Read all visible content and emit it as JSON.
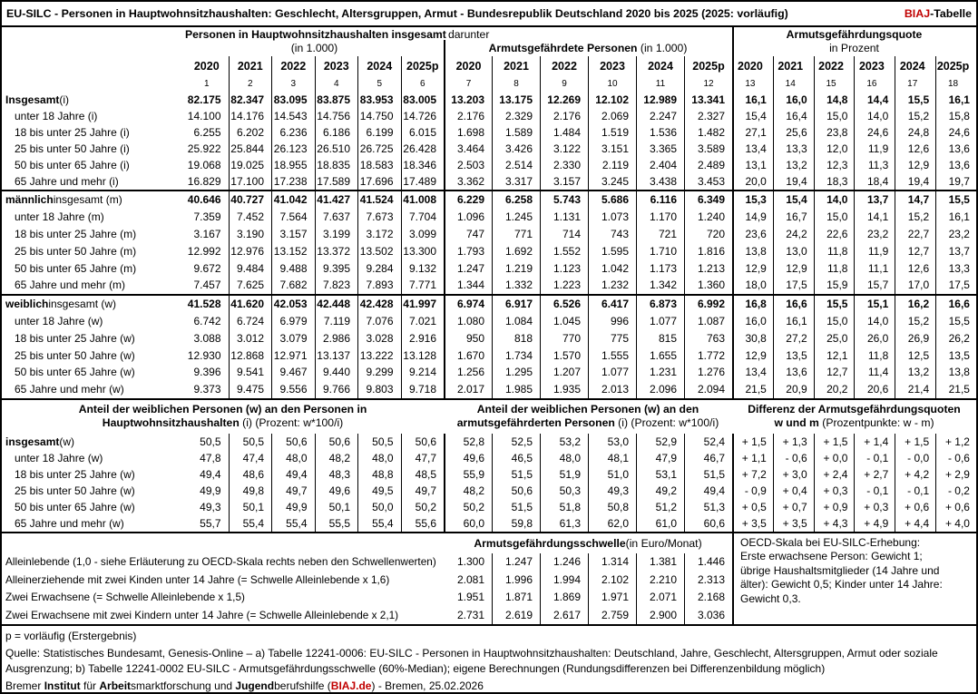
{
  "colors": {
    "accent": "#C00000"
  },
  "title": {
    "text": "EU-SILC - Personen in Hauptwohnsitzhaushalten: Geschlecht, Altersgruppen, Armut - Bundesrepublik Deutschland 2020 bis 2025 (2025: vorläufig)",
    "brand": "BIAJ",
    "brand_suffix": "-Tabelle"
  },
  "groups": {
    "g1_line1": "Personen in Hauptwohnsitzhaushalten insgesamt",
    "g1_line2": "(in 1.000)",
    "darunter": "darunter",
    "g2_bold": "Armutsgefährdete Personen",
    "g2_rest": " (in 1.000)",
    "g3_line1": "Armutsgefährdungsquote",
    "g3_line2": "in Prozent"
  },
  "header_rows": [
    {
      "cls": "yr",
      "b1": [
        "2020",
        "2021",
        "2022",
        "2023",
        "2024",
        "2025p"
      ],
      "b2": [
        "2020",
        "2021",
        "2022",
        "2023",
        "2024",
        "2025p"
      ],
      "b3": [
        "2020",
        "2021",
        "2022",
        "2023",
        "2024",
        "2025p"
      ]
    },
    {
      "cls": "nr",
      "b1": [
        "1",
        "2",
        "3",
        "4",
        "5",
        "6"
      ],
      "b2": [
        "7",
        "8",
        "9",
        "10",
        "11",
        "12"
      ],
      "b3": [
        "13",
        "14",
        "15",
        "16",
        "17",
        "18"
      ]
    }
  ],
  "sections": [
    {
      "rows": [
        {
          "label_strong": "Insgesamt",
          "label_rest": " (i)",
          "bold": true,
          "b1": [
            "82.175",
            "82.347",
            "83.095",
            "83.875",
            "83.953",
            "83.005"
          ],
          "b2": [
            "13.203",
            "13.175",
            "12.269",
            "12.102",
            "12.989",
            "13.341"
          ],
          "b3": [
            "16,1",
            "16,0",
            "14,8",
            "14,4",
            "15,5",
            "16,1"
          ]
        },
        {
          "label_rest": "unter 18 Jahre (i)",
          "indent": true,
          "b1": [
            "14.100",
            "14.176",
            "14.543",
            "14.756",
            "14.750",
            "14.726"
          ],
          "b2": [
            "2.176",
            "2.329",
            "2.176",
            "2.069",
            "2.247",
            "2.327"
          ],
          "b3": [
            "15,4",
            "16,4",
            "15,0",
            "14,0",
            "15,2",
            "15,8"
          ]
        },
        {
          "label_rest": "18 bis unter 25 Jahre (i)",
          "indent": true,
          "b1": [
            "6.255",
            "6.202",
            "6.236",
            "6.186",
            "6.199",
            "6.015"
          ],
          "b2": [
            "1.698",
            "1.589",
            "1.484",
            "1.519",
            "1.536",
            "1.482"
          ],
          "b3": [
            "27,1",
            "25,6",
            "23,8",
            "24,6",
            "24,8",
            "24,6"
          ]
        },
        {
          "label_rest": "25 bis unter 50 Jahre (i)",
          "indent": true,
          "b1": [
            "25.922",
            "25.844",
            "26.123",
            "26.510",
            "26.725",
            "26.428"
          ],
          "b2": [
            "3.464",
            "3.426",
            "3.122",
            "3.151",
            "3.365",
            "3.589"
          ],
          "b3": [
            "13,4",
            "13,3",
            "12,0",
            "11,9",
            "12,6",
            "13,6"
          ]
        },
        {
          "label_rest": "50 bis unter 65 Jahre (i)",
          "indent": true,
          "b1": [
            "19.068",
            "19.025",
            "18.955",
            "18.835",
            "18.583",
            "18.346"
          ],
          "b2": [
            "2.503",
            "2.514",
            "2.330",
            "2.119",
            "2.404",
            "2.489"
          ],
          "b3": [
            "13,1",
            "13,2",
            "12,3",
            "11,3",
            "12,9",
            "13,6"
          ]
        },
        {
          "label_rest": "65 Jahre und mehr (i)",
          "indent": true,
          "b1": [
            "16.829",
            "17.100",
            "17.238",
            "17.589",
            "17.696",
            "17.489"
          ],
          "b2": [
            "3.362",
            "3.317",
            "3.157",
            "3.245",
            "3.438",
            "3.453"
          ],
          "b3": [
            "20,0",
            "19,4",
            "18,3",
            "18,4",
            "19,4",
            "19,7"
          ]
        }
      ]
    },
    {
      "rows": [
        {
          "label_strong": "männlich",
          "label_rest": " insgesamt (m)",
          "bold": true,
          "b1": [
            "40.646",
            "40.727",
            "41.042",
            "41.427",
            "41.524",
            "41.008"
          ],
          "b2": [
            "6.229",
            "6.258",
            "5.743",
            "5.686",
            "6.116",
            "6.349"
          ],
          "b3": [
            "15,3",
            "15,4",
            "14,0",
            "13,7",
            "14,7",
            "15,5"
          ]
        },
        {
          "label_rest": "unter 18 Jahre (m)",
          "indent": true,
          "b1": [
            "7.359",
            "7.452",
            "7.564",
            "7.637",
            "7.673",
            "7.704"
          ],
          "b2": [
            "1.096",
            "1.245",
            "1.131",
            "1.073",
            "1.170",
            "1.240"
          ],
          "b3": [
            "14,9",
            "16,7",
            "15,0",
            "14,1",
            "15,2",
            "16,1"
          ]
        },
        {
          "label_rest": "18 bis unter 25 Jahre (m)",
          "indent": true,
          "b1": [
            "3.167",
            "3.190",
            "3.157",
            "3.199",
            "3.172",
            "3.099"
          ],
          "b2": [
            "747",
            "771",
            "714",
            "743",
            "721",
            "720"
          ],
          "b3": [
            "23,6",
            "24,2",
            "22,6",
            "23,2",
            "22,7",
            "23,2"
          ]
        },
        {
          "label_rest": "25 bis unter 50 Jahre (m)",
          "indent": true,
          "b1": [
            "12.992",
            "12.976",
            "13.152",
            "13.372",
            "13.502",
            "13.300"
          ],
          "b2": [
            "1.793",
            "1.692",
            "1.552",
            "1.595",
            "1.710",
            "1.816"
          ],
          "b3": [
            "13,8",
            "13,0",
            "11,8",
            "11,9",
            "12,7",
            "13,7"
          ]
        },
        {
          "label_rest": "50 bis unter 65 Jahre (m)",
          "indent": true,
          "b1": [
            "9.672",
            "9.484",
            "9.488",
            "9.395",
            "9.284",
            "9.132"
          ],
          "b2": [
            "1.247",
            "1.219",
            "1.123",
            "1.042",
            "1.173",
            "1.213"
          ],
          "b3": [
            "12,9",
            "12,9",
            "11,8",
            "11,1",
            "12,6",
            "13,3"
          ]
        },
        {
          "label_rest": "65 Jahre und mehr (m)",
          "indent": true,
          "b1": [
            "7.457",
            "7.625",
            "7.682",
            "7.823",
            "7.893",
            "7.771"
          ],
          "b2": [
            "1.344",
            "1.332",
            "1.223",
            "1.232",
            "1.342",
            "1.360"
          ],
          "b3": [
            "18,0",
            "17,5",
            "15,9",
            "15,7",
            "17,0",
            "17,5"
          ]
        }
      ]
    },
    {
      "rows": [
        {
          "label_strong": "weiblich",
          "label_rest": " insgesamt (w)",
          "bold": true,
          "b1": [
            "41.528",
            "41.620",
            "42.053",
            "42.448",
            "42.428",
            "41.997"
          ],
          "b2": [
            "6.974",
            "6.917",
            "6.526",
            "6.417",
            "6.873",
            "6.992"
          ],
          "b3": [
            "16,8",
            "16,6",
            "15,5",
            "15,1",
            "16,2",
            "16,6"
          ]
        },
        {
          "label_rest": "unter 18 Jahre (w)",
          "indent": true,
          "b1": [
            "6.742",
            "6.724",
            "6.979",
            "7.119",
            "7.076",
            "7.021"
          ],
          "b2": [
            "1.080",
            "1.084",
            "1.045",
            "996",
            "1.077",
            "1.087"
          ],
          "b3": [
            "16,0",
            "16,1",
            "15,0",
            "14,0",
            "15,2",
            "15,5"
          ]
        },
        {
          "label_rest": "18 bis unter 25 Jahre (w)",
          "indent": true,
          "b1": [
            "3.088",
            "3.012",
            "3.079",
            "2.986",
            "3.028",
            "2.916"
          ],
          "b2": [
            "950",
            "818",
            "770",
            "775",
            "815",
            "763"
          ],
          "b3": [
            "30,8",
            "27,2",
            "25,0",
            "26,0",
            "26,9",
            "26,2"
          ]
        },
        {
          "label_rest": "25 bis unter 50 Jahre (w)",
          "indent": true,
          "b1": [
            "12.930",
            "12.868",
            "12.971",
            "13.137",
            "13.222",
            "13.128"
          ],
          "b2": [
            "1.670",
            "1.734",
            "1.570",
            "1.555",
            "1.655",
            "1.772"
          ],
          "b3": [
            "12,9",
            "13,5",
            "12,1",
            "11,8",
            "12,5",
            "13,5"
          ]
        },
        {
          "label_rest": "50 bis unter 65 Jahre (w)",
          "indent": true,
          "b1": [
            "9.396",
            "9.541",
            "9.467",
            "9.440",
            "9.299",
            "9.214"
          ],
          "b2": [
            "1.256",
            "1.295",
            "1.207",
            "1.077",
            "1.231",
            "1.276"
          ],
          "b3": [
            "13,4",
            "13,6",
            "12,7",
            "11,4",
            "13,2",
            "13,8"
          ]
        },
        {
          "label_rest": "65 Jahre und mehr (w)",
          "indent": true,
          "b1": [
            "9.373",
            "9.475",
            "9.556",
            "9.766",
            "9.803",
            "9.718"
          ],
          "b2": [
            "2.017",
            "1.985",
            "1.935",
            "2.013",
            "2.096",
            "2.094"
          ],
          "b3": [
            "21,5",
            "20,9",
            "20,2",
            "20,6",
            "21,4",
            "21,5"
          ]
        }
      ]
    }
  ],
  "anteil": {
    "h1_line1": "Anteil der weiblichen Personen (w) an den Personen in",
    "h1_line2_bold": "Hauptwohnsitzhaushalten",
    "h1_line2_rest": " (i) (Prozent: w*100/i)",
    "h2_line1": "Anteil der weiblichen Personen (w) an den",
    "h2_line2_bold": "armutsgefährderten Personen",
    "h2_line2_rest": " (i) (Prozent: w*100/i)",
    "h3_line1": "Differenz der Armutsgefährdungsquoten",
    "h3_line2_bold": "w und m",
    "h3_line2_rest": " (Prozentpunkte: w - m)",
    "rows": [
      {
        "label_strong": "insgesamt",
        "label_rest": " (w)",
        "b1": [
          "50,5",
          "50,5",
          "50,6",
          "50,6",
          "50,5",
          "50,6"
        ],
        "b2": [
          "52,8",
          "52,5",
          "53,2",
          "53,0",
          "52,9",
          "52,4"
        ],
        "b3": [
          "+ 1,5",
          "+ 1,3",
          "+ 1,5",
          "+ 1,4",
          "+ 1,5",
          "+ 1,2"
        ]
      },
      {
        "label_rest": "unter 18 Jahre (w)",
        "indent": true,
        "b1": [
          "47,8",
          "47,4",
          "48,0",
          "48,2",
          "48,0",
          "47,7"
        ],
        "b2": [
          "49,6",
          "46,5",
          "48,0",
          "48,1",
          "47,9",
          "46,7"
        ],
        "b3": [
          "+ 1,1",
          "- 0,6",
          "+ 0,0",
          "- 0,1",
          "- 0,0",
          "- 0,6"
        ]
      },
      {
        "label_rest": "18 bis unter 25 Jahre (w)",
        "indent": true,
        "b1": [
          "49,4",
          "48,6",
          "49,4",
          "48,3",
          "48,8",
          "48,5"
        ],
        "b2": [
          "55,9",
          "51,5",
          "51,9",
          "51,0",
          "53,1",
          "51,5"
        ],
        "b3": [
          "+ 7,2",
          "+ 3,0",
          "+ 2,4",
          "+ 2,7",
          "+ 4,2",
          "+ 2,9"
        ]
      },
      {
        "label_rest": "25 bis unter 50 Jahre (w)",
        "indent": true,
        "b1": [
          "49,9",
          "49,8",
          "49,7",
          "49,6",
          "49,5",
          "49,7"
        ],
        "b2": [
          "48,2",
          "50,6",
          "50,3",
          "49,3",
          "49,2",
          "49,4"
        ],
        "b3": [
          "- 0,9",
          "+ 0,4",
          "+ 0,3",
          "- 0,1",
          "- 0,1",
          "- 0,2"
        ]
      },
      {
        "label_rest": "50 bis unter 65 Jahre (w)",
        "indent": true,
        "b1": [
          "49,3",
          "50,1",
          "49,9",
          "50,1",
          "50,0",
          "50,2"
        ],
        "b2": [
          "50,2",
          "51,5",
          "51,8",
          "50,8",
          "51,2",
          "51,3"
        ],
        "b3": [
          "+ 0,5",
          "+ 0,7",
          "+ 0,9",
          "+ 0,3",
          "+ 0,6",
          "+ 0,6"
        ]
      },
      {
        "label_rest": "65 Jahre und mehr (w)",
        "indent": true,
        "b1": [
          "55,7",
          "55,4",
          "55,4",
          "55,5",
          "55,4",
          "55,6"
        ],
        "b2": [
          "60,0",
          "59,8",
          "61,3",
          "62,0",
          "61,0",
          "60,6"
        ],
        "b3": [
          "+ 3,5",
          "+ 3,5",
          "+ 4,3",
          "+ 4,9",
          "+ 4,4",
          "+ 4,0"
        ]
      }
    ]
  },
  "schwelle": {
    "title_bold": "Armutsgefährdungsschwelle",
    "title_rest": " (in Euro/Monat)",
    "rows": [
      {
        "label_rest": "Alleinlebende (1,0 - siehe Erläuterung zu OECD-Skala rechts neben den Schwellenwerten)",
        "b2": [
          "1.300",
          "1.247",
          "1.246",
          "1.314",
          "1.381",
          "1.446"
        ]
      },
      {
        "label_rest": "Alleinerziehende mit zwei Kinden unter 14 Jahre (= Schwelle Alleinlebende x 1,6)",
        "b2": [
          "2.081",
          "1.996",
          "1.994",
          "2.102",
          "2.210",
          "2.313"
        ]
      },
      {
        "label_rest": "Zwei Erwachsene (= Schwelle Alleinlebende x 1,5)",
        "b2": [
          "1.951",
          "1.871",
          "1.869",
          "1.971",
          "2.071",
          "2.168"
        ]
      },
      {
        "label_rest": "Zwei Erwachsene mit zwei Kindern unter 14 Jahre (= Schwelle Alleinlebende x 2,1)",
        "b2": [
          "2.731",
          "2.619",
          "2.617",
          "2.759",
          "2.900",
          "3.036"
        ]
      }
    ],
    "oecd_note_lines": [
      "OECD-Skala bei EU-SILC-Erhebung:",
      "Erste erwachsene Person: Gewicht 1;",
      "übrige Haushaltsmitglieder (14 Jahre und",
      "älter): Gewicht 0,5; Kinder unter 14 Jahre:",
      "Gewicht 0,3."
    ]
  },
  "footer": {
    "pnote": "p = vorläufig (Erstergebnis)",
    "source": "Quelle: Statistisches Bundesamt, Genesis-Online – a) Tabelle 12241-0006: EU-SILC - Personen in Hauptwohnsitzhaushalten: Deutschland, Jahre, Geschlecht, Altersgruppen, Armut oder soziale Ausgrenzung; b) Tabelle 12241-0002 EU-SILC - Armutsgefährdungsschwelle (60%-Median); eigene Berechnungen (Rundungsdifferenzen bei Differenzenbildung möglich)",
    "credit": {
      "p1": "Bremer ",
      "b1": "Institut",
      "p2": " für ",
      "b2": "Arbeit",
      "p3": "smarktforschung und ",
      "b3": "Jugend",
      "p4": "berufshilfe (",
      "brand": "BIAJ.de",
      "p5": ") - Bremen, 25.02.2026"
    }
  }
}
